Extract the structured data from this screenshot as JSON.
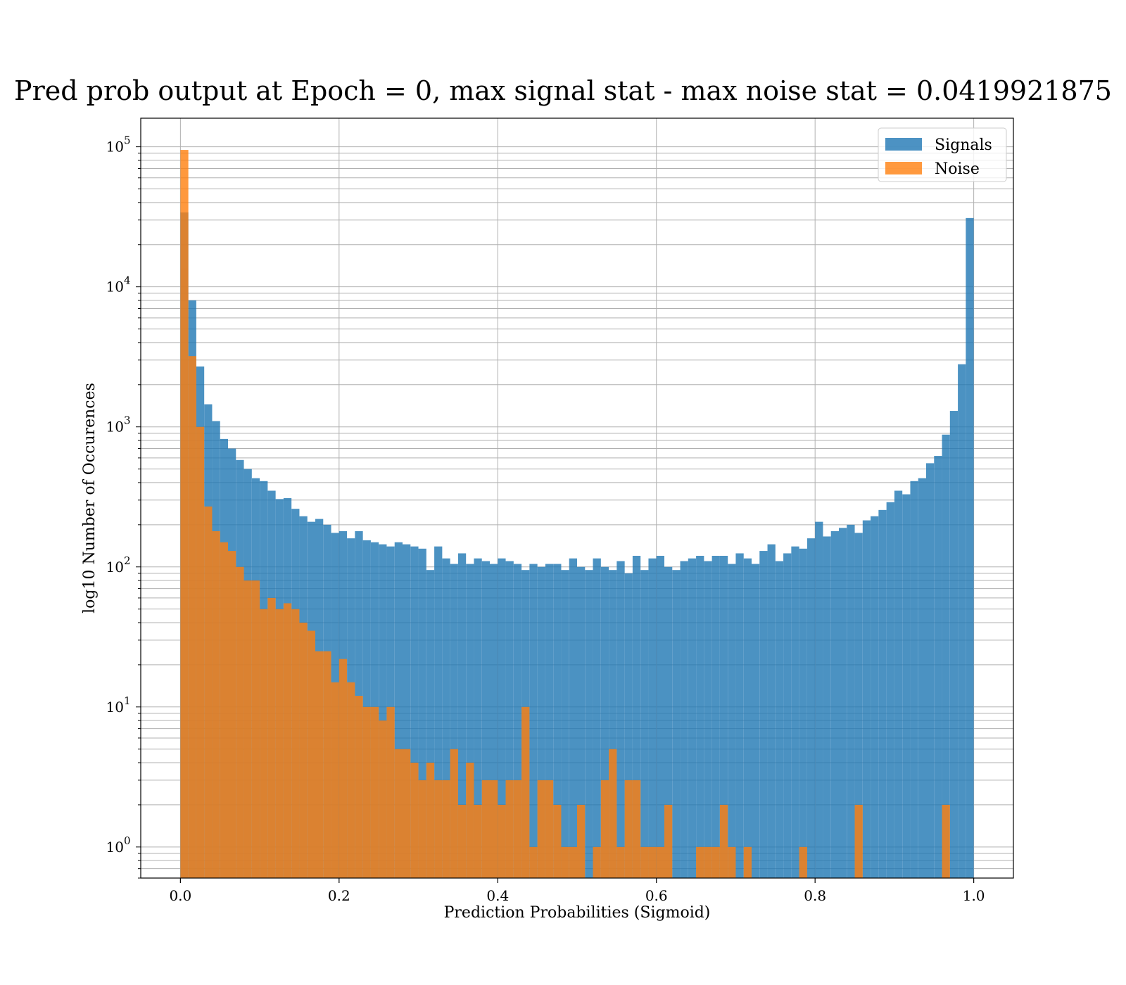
{
  "chart_data": {
    "type": "bar",
    "title": "Pred prob output at Epoch = 0, max signal stat - max noise stat = 0.0419921875",
    "xlabel": "Prediction Probabilities (Sigmoid)",
    "ylabel": "log10 Number of Occurences",
    "scale": "log",
    "xlim": [
      -0.05,
      1.05
    ],
    "ylim": [
      0.6,
      160000
    ],
    "xticks": [
      {
        "value": 0.0,
        "label": "0.0"
      },
      {
        "value": 0.2,
        "label": "0.2"
      },
      {
        "value": 0.4,
        "label": "0.4"
      },
      {
        "value": 0.6,
        "label": "0.6"
      },
      {
        "value": 0.8,
        "label": "0.8"
      },
      {
        "value": 1.0,
        "label": "1.0"
      }
    ],
    "yticks": [
      {
        "value": 1,
        "base": "10",
        "exp": "0"
      },
      {
        "value": 10,
        "base": "10",
        "exp": "1"
      },
      {
        "value": 100,
        "base": "10",
        "exp": "2"
      },
      {
        "value": 1000,
        "base": "10",
        "exp": "3"
      },
      {
        "value": 10000,
        "base": "10",
        "exp": "4"
      },
      {
        "value": 100000,
        "base": "10",
        "exp": "5"
      }
    ],
    "grid": true,
    "legend_position": "top-right",
    "bin_start": 0.0,
    "bin_width": 0.01,
    "series": [
      {
        "name": "Signals",
        "color": "#1f77b4",
        "opacity": 0.8,
        "values": [
          34000,
          8000,
          2700,
          1450,
          1100,
          820,
          700,
          580,
          500,
          430,
          410,
          350,
          305,
          310,
          260,
          230,
          210,
          220,
          200,
          175,
          180,
          160,
          180,
          155,
          150,
          145,
          140,
          150,
          145,
          140,
          135,
          95,
          140,
          115,
          105,
          125,
          105,
          115,
          110,
          105,
          115,
          110,
          105,
          95,
          105,
          100,
          105,
          105,
          95,
          115,
          100,
          95,
          115,
          100,
          95,
          110,
          90,
          120,
          95,
          115,
          120,
          100,
          95,
          110,
          115,
          120,
          110,
          120,
          120,
          105,
          125,
          115,
          105,
          130,
          145,
          110,
          125,
          140,
          135,
          160,
          210,
          165,
          180,
          190,
          200,
          175,
          215,
          230,
          255,
          290,
          350,
          330,
          410,
          430,
          550,
          620,
          880,
          1300,
          2800,
          31000
        ]
      },
      {
        "name": "Noise",
        "color": "#ff7f0e",
        "opacity": 0.8,
        "values": [
          95000,
          3200,
          1000,
          270,
          180,
          150,
          130,
          100,
          80,
          80,
          50,
          60,
          50,
          55,
          50,
          40,
          35,
          25,
          25,
          15,
          22,
          15,
          12,
          10,
          10,
          8,
          10,
          5,
          5,
          4,
          3,
          4,
          3,
          3,
          5,
          2,
          4,
          2,
          3,
          3,
          2,
          3,
          3,
          10,
          1,
          3,
          3,
          2,
          1,
          1,
          2,
          0.5,
          1,
          3,
          5,
          1,
          3,
          3,
          1,
          1,
          1,
          2,
          0.5,
          0.5,
          0.5,
          1,
          1,
          1,
          2,
          1,
          0.5,
          1,
          0.5,
          0.5,
          0.5,
          0.5,
          0.5,
          0.5,
          1,
          0.5,
          0.5,
          0.5,
          0.5,
          0.5,
          0.5,
          2,
          0.5,
          0.5,
          0.5,
          0.5,
          0.5,
          0.5,
          0.5,
          0.5,
          0.5,
          0.5,
          2,
          0.5,
          0.5,
          0.5
        ]
      }
    ]
  }
}
